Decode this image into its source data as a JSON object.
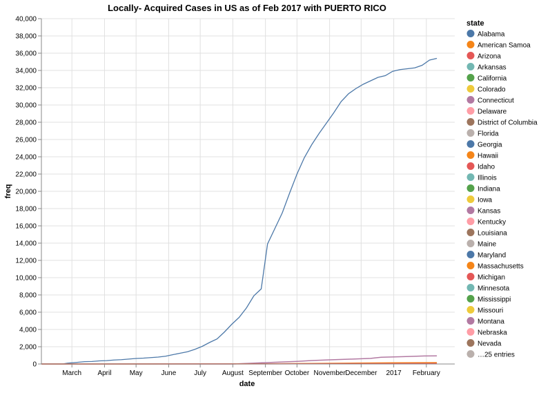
{
  "chart_data": {
    "type": "line",
    "title": "Locally- Acquired Cases in US as of Feb 2017 with PUERTO RICO",
    "xlabel": "date",
    "ylabel": "freq",
    "x_range": [
      "2016-02-01",
      "2017-02-28"
    ],
    "ylim": [
      0,
      40000
    ],
    "grid": true,
    "legend_position": "right",
    "x_tick_labels": [
      {
        "date": "2016-03-01",
        "label": "March"
      },
      {
        "date": "2016-04-01",
        "label": "April"
      },
      {
        "date": "2016-05-01",
        "label": "May"
      },
      {
        "date": "2016-06-01",
        "label": "June"
      },
      {
        "date": "2016-07-01",
        "label": "July"
      },
      {
        "date": "2016-08-01",
        "label": "August"
      },
      {
        "date": "2016-09-01",
        "label": "September"
      },
      {
        "date": "2016-10-01",
        "label": "October"
      },
      {
        "date": "2016-11-01",
        "label": "November"
      },
      {
        "date": "2016-12-01",
        "label": "December"
      },
      {
        "date": "2017-01-01",
        "label": "2017"
      },
      {
        "date": "2017-02-01",
        "label": "February"
      }
    ],
    "y_ticks": [
      0,
      2000,
      4000,
      6000,
      8000,
      10000,
      12000,
      14000,
      16000,
      18000,
      20000,
      22000,
      24000,
      26000,
      28000,
      30000,
      32000,
      34000,
      36000,
      38000,
      40000
    ],
    "y_tick_labels": [
      "0",
      "2,000",
      "4,000",
      "6,000",
      "8,000",
      "10,000",
      "12,000",
      "14,000",
      "16,000",
      "18,000",
      "20,000",
      "22,000",
      "24,000",
      "26,000",
      "28,000",
      "30,000",
      "32,000",
      "34,000",
      "36,000",
      "38,000",
      "40,000"
    ],
    "legend_title": "state",
    "legend_entries": [
      {
        "label": "Alabama",
        "color": "#4c78a8"
      },
      {
        "label": "American Samoa",
        "color": "#f58518"
      },
      {
        "label": "Arizona",
        "color": "#e45756"
      },
      {
        "label": "Arkansas",
        "color": "#72b7b2"
      },
      {
        "label": "California",
        "color": "#54a24b"
      },
      {
        "label": "Colorado",
        "color": "#eeca3b"
      },
      {
        "label": "Connecticut",
        "color": "#b279a2"
      },
      {
        "label": "Delaware",
        "color": "#ff9da6"
      },
      {
        "label": "District of Columbia",
        "color": "#9d755d"
      },
      {
        "label": "Florida",
        "color": "#bab0ac"
      },
      {
        "label": "Georgia",
        "color": "#4c78a8"
      },
      {
        "label": "Hawaii",
        "color": "#f58518"
      },
      {
        "label": "Idaho",
        "color": "#e45756"
      },
      {
        "label": "Illinois",
        "color": "#72b7b2"
      },
      {
        "label": "Indiana",
        "color": "#54a24b"
      },
      {
        "label": "Iowa",
        "color": "#eeca3b"
      },
      {
        "label": "Kansas",
        "color": "#b279a2"
      },
      {
        "label": "Kentucky",
        "color": "#ff9da6"
      },
      {
        "label": "Louisiana",
        "color": "#9d755d"
      },
      {
        "label": "Maine",
        "color": "#bab0ac"
      },
      {
        "label": "Maryland",
        "color": "#4c78a8"
      },
      {
        "label": "Massachusetts",
        "color": "#f58518"
      },
      {
        "label": "Michigan",
        "color": "#e45756"
      },
      {
        "label": "Minnesota",
        "color": "#72b7b2"
      },
      {
        "label": "Mississippi",
        "color": "#54a24b"
      },
      {
        "label": "Missouri",
        "color": "#eeca3b"
      },
      {
        "label": "Montana",
        "color": "#b279a2"
      },
      {
        "label": "Nebraska",
        "color": "#ff9da6"
      },
      {
        "label": "Nevada",
        "color": "#9d755d"
      },
      {
        "label": "…25 entries",
        "color": "#bab0ac"
      }
    ],
    "series": [
      {
        "color": "#4c78a8",
        "points": [
          [
            "2016-02-01",
            0
          ],
          [
            "2016-02-21",
            0
          ],
          [
            "2016-02-26",
            100
          ],
          [
            "2016-03-05",
            180
          ],
          [
            "2016-03-13",
            270
          ],
          [
            "2016-03-20",
            290
          ],
          [
            "2016-03-27",
            360
          ],
          [
            "2016-04-03",
            390
          ],
          [
            "2016-04-10",
            460
          ],
          [
            "2016-04-17",
            500
          ],
          [
            "2016-04-24",
            570
          ],
          [
            "2016-05-01",
            640
          ],
          [
            "2016-05-08",
            680
          ],
          [
            "2016-05-15",
            740
          ],
          [
            "2016-05-22",
            800
          ],
          [
            "2016-05-29",
            900
          ],
          [
            "2016-06-05",
            1080
          ],
          [
            "2016-06-12",
            1250
          ],
          [
            "2016-06-19",
            1420
          ],
          [
            "2016-06-26",
            1700
          ],
          [
            "2016-07-03",
            2050
          ],
          [
            "2016-07-10",
            2500
          ],
          [
            "2016-07-17",
            2900
          ],
          [
            "2016-07-24",
            3700
          ],
          [
            "2016-07-31",
            4600
          ],
          [
            "2016-08-07",
            5400
          ],
          [
            "2016-08-14",
            6500
          ],
          [
            "2016-08-21",
            7900
          ],
          [
            "2016-08-28",
            8700
          ],
          [
            "2016-09-03",
            13900
          ],
          [
            "2016-09-10",
            15700
          ],
          [
            "2016-09-17",
            17500
          ],
          [
            "2016-09-24",
            19800
          ],
          [
            "2016-10-01",
            22000
          ],
          [
            "2016-10-08",
            23900
          ],
          [
            "2016-10-15",
            25400
          ],
          [
            "2016-10-22",
            26700
          ],
          [
            "2016-10-29",
            27900
          ],
          [
            "2016-11-05",
            29100
          ],
          [
            "2016-11-12",
            30400
          ],
          [
            "2016-11-19",
            31300
          ],
          [
            "2016-11-26",
            31900
          ],
          [
            "2016-12-03",
            32400
          ],
          [
            "2016-12-10",
            32800
          ],
          [
            "2016-12-17",
            33200
          ],
          [
            "2016-12-24",
            33400
          ],
          [
            "2016-12-31",
            33900
          ],
          [
            "2017-01-07",
            34100
          ],
          [
            "2017-01-14",
            34200
          ],
          [
            "2017-01-21",
            34300
          ],
          [
            "2017-01-28",
            34600
          ],
          [
            "2017-02-04",
            35200
          ],
          [
            "2017-02-11",
            35400
          ]
        ]
      },
      {
        "color": "#b279a2",
        "points": [
          [
            "2016-02-01",
            0
          ],
          [
            "2016-08-01",
            0
          ],
          [
            "2016-08-21",
            100
          ],
          [
            "2016-09-10",
            200
          ],
          [
            "2016-10-01",
            300
          ],
          [
            "2016-10-15",
            400
          ],
          [
            "2016-11-01",
            480
          ],
          [
            "2016-11-20",
            560
          ],
          [
            "2016-12-10",
            650
          ],
          [
            "2016-12-20",
            780
          ],
          [
            "2017-01-10",
            850
          ],
          [
            "2017-01-30",
            930
          ],
          [
            "2017-02-11",
            940
          ]
        ]
      },
      {
        "color": "#f58518",
        "points": [
          [
            "2016-02-01",
            0
          ],
          [
            "2016-09-01",
            20
          ],
          [
            "2016-10-15",
            60
          ],
          [
            "2016-12-01",
            110
          ],
          [
            "2017-01-01",
            140
          ],
          [
            "2017-02-11",
            160
          ]
        ]
      },
      {
        "color": "#e45756",
        "points": [
          [
            "2016-02-01",
            0
          ],
          [
            "2016-09-01",
            10
          ],
          [
            "2016-12-01",
            40
          ],
          [
            "2017-02-11",
            60
          ]
        ]
      }
    ]
  }
}
